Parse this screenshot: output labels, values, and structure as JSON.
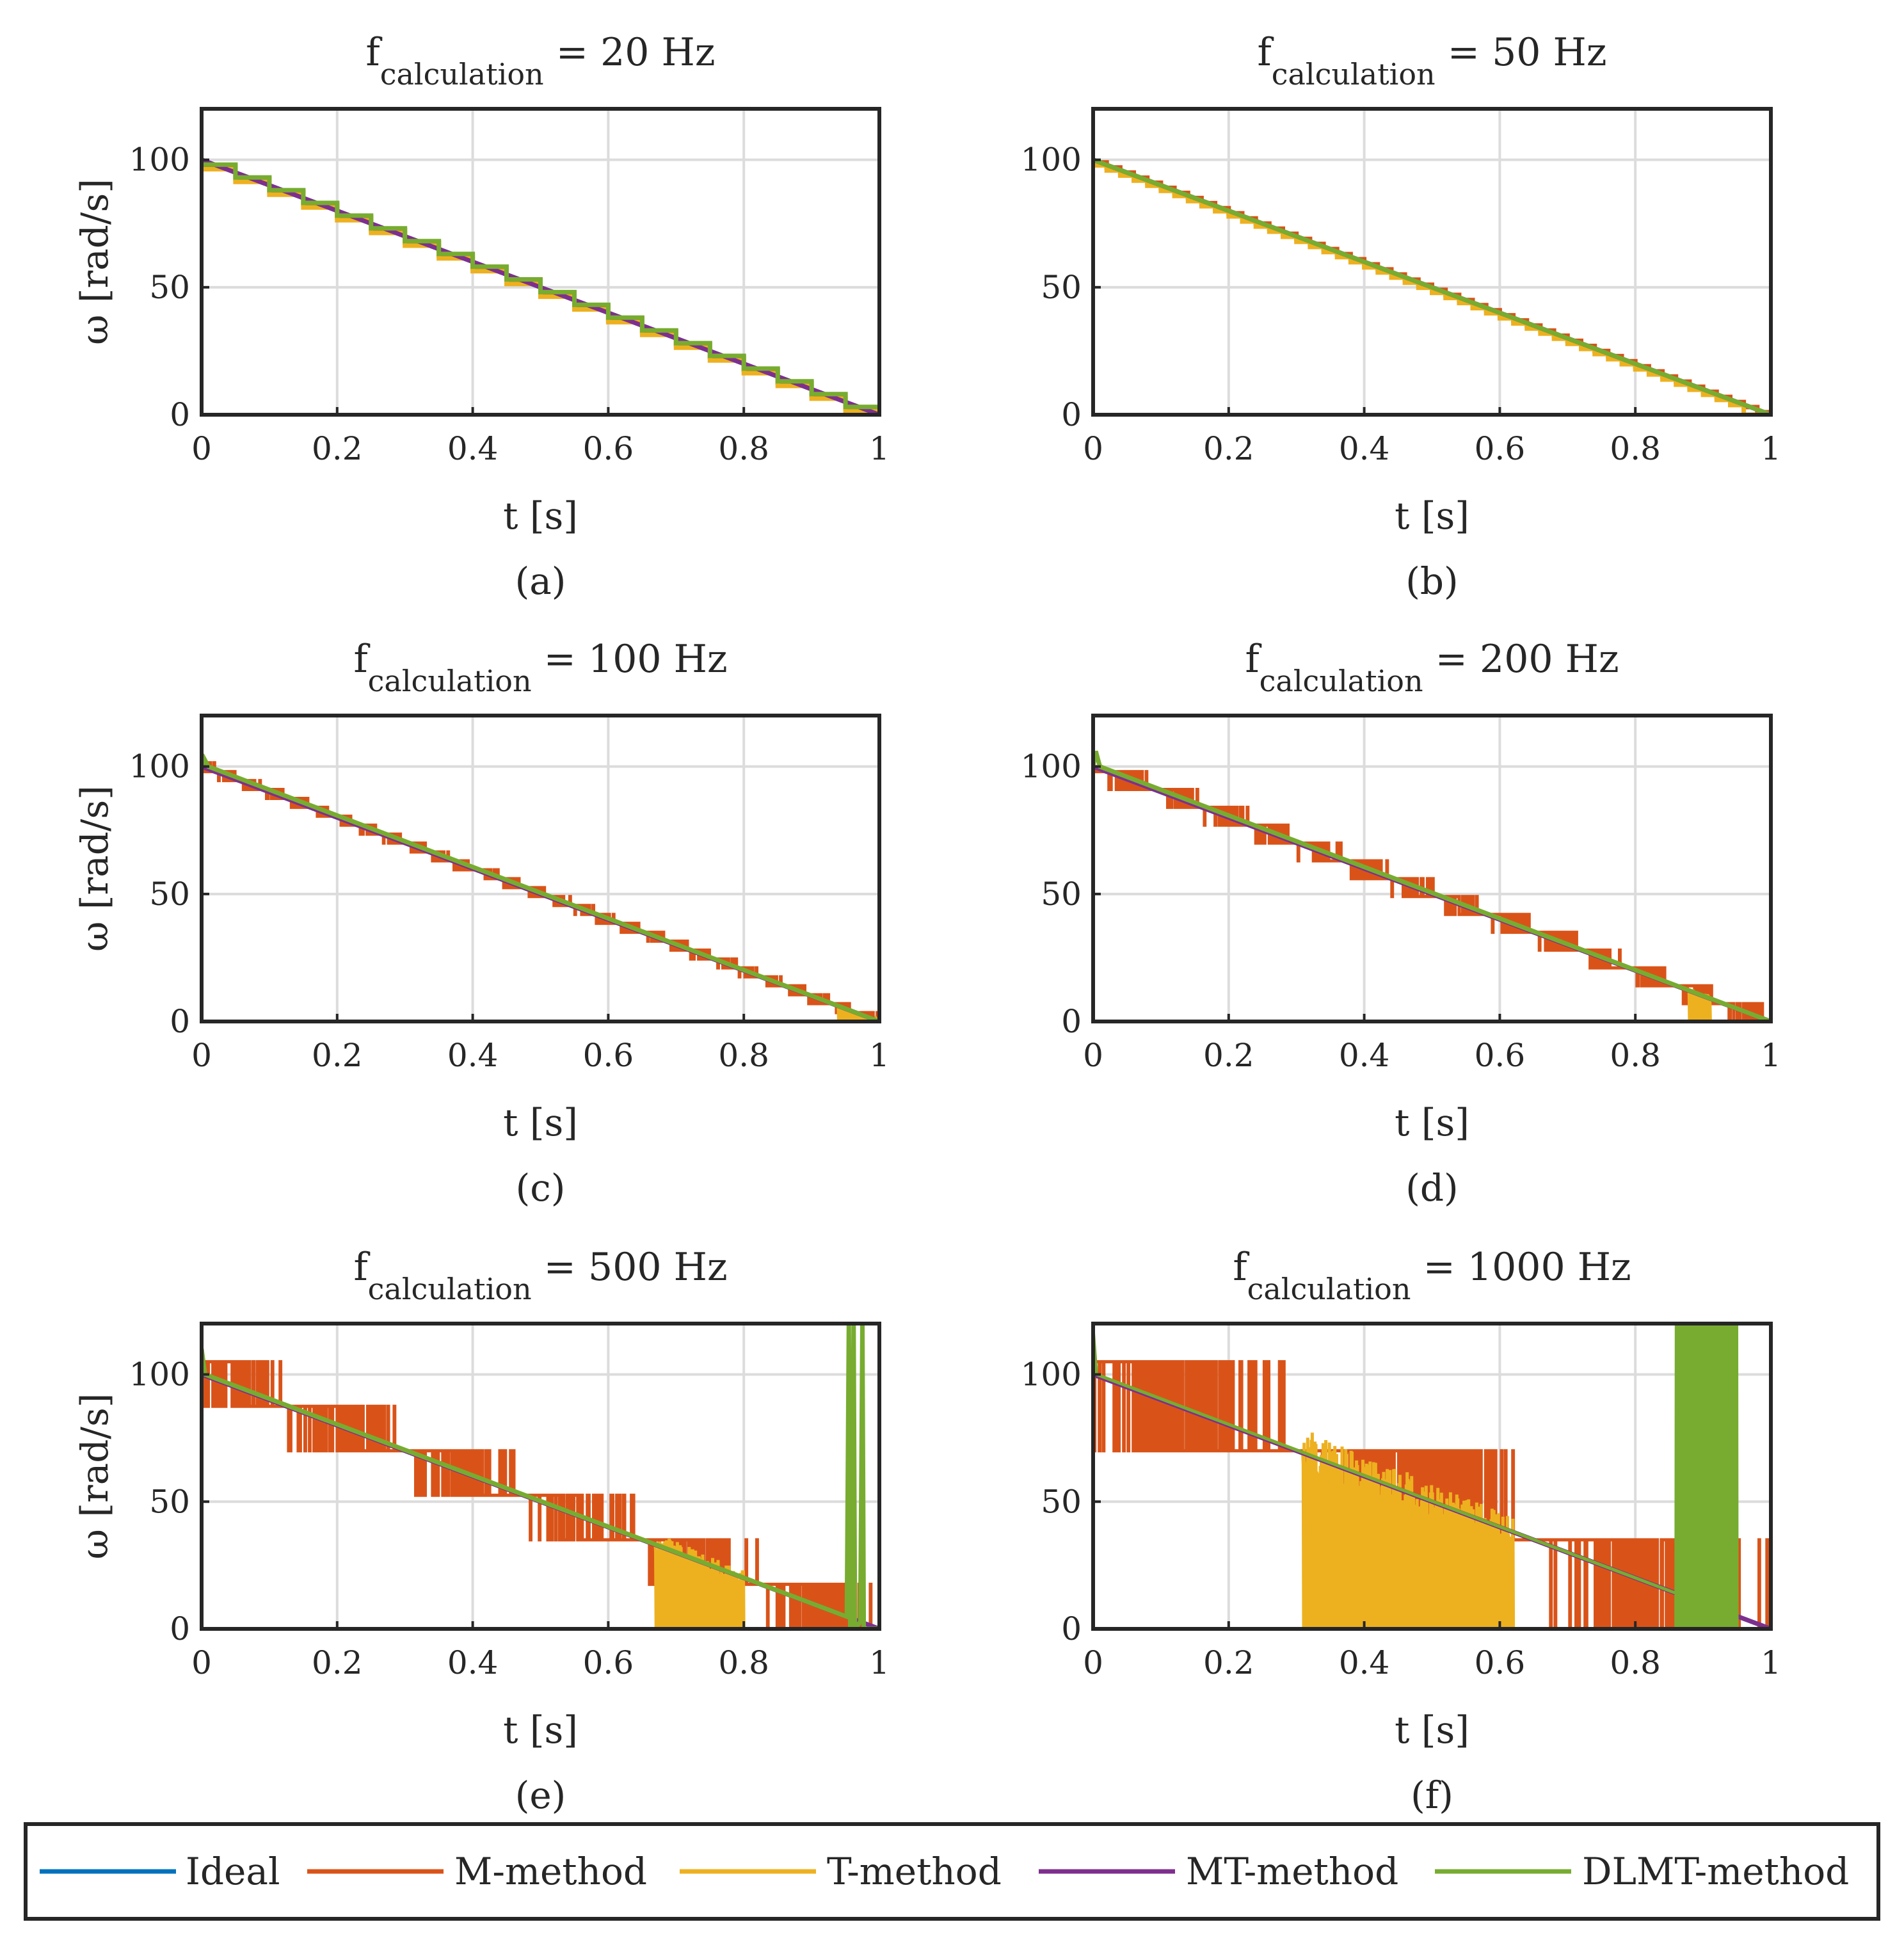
{
  "legend": {
    "entries": [
      {
        "key": "ideal",
        "label": "Ideal",
        "color": "#0072BD"
      },
      {
        "key": "m",
        "label": "M-method",
        "color": "#D95319"
      },
      {
        "key": "t",
        "label": "T-method",
        "color": "#EDB120"
      },
      {
        "key": "mt",
        "label": "MT-method",
        "color": "#7E2F8E"
      },
      {
        "key": "dlmt",
        "label": "DLMT-method",
        "color": "#77AC30"
      }
    ]
  },
  "chart_data": [
    {
      "type": "line",
      "caption": "(a)",
      "title": {
        "prefix": "f",
        "subscript": "calculation",
        "suffix": " = 20 Hz"
      },
      "xlabel": "t [s]",
      "ylabel": "ω [rad/s]",
      "xlim": [
        0,
        1
      ],
      "ylim": [
        0,
        120
      ],
      "xticks": [
        "0",
        "0.2",
        "0.4",
        "0.6",
        "0.8",
        "1"
      ],
      "yticks": [
        "0",
        "50",
        "100"
      ],
      "grid": true,
      "series": [
        {
          "key": "ideal",
          "name": "Ideal",
          "x": [
            0,
            1
          ],
          "y": [
            100,
            0
          ]
        },
        {
          "key": "m",
          "name": "M-method",
          "behavior": "staircase",
          "steps": 20,
          "step_values_from": 95,
          "step_values_to": 3
        },
        {
          "key": "t",
          "name": "T-method",
          "behavior": "staircase",
          "steps": 20,
          "step_values_from": 95,
          "step_values_to": 3
        },
        {
          "key": "mt",
          "name": "MT-method",
          "x": [
            0,
            1
          ],
          "y": [
            100,
            0
          ]
        },
        {
          "key": "dlmt",
          "name": "DLMT-method",
          "behavior": "staircase",
          "steps": 20,
          "step_values_from": 97,
          "step_values_to": 3
        }
      ]
    },
    {
      "type": "line",
      "caption": "(b)",
      "title": {
        "prefix": "f",
        "subscript": "calculation",
        "suffix": " = 50 Hz"
      },
      "xlabel": "t [s]",
      "ylabel": "",
      "xlim": [
        0,
        1
      ],
      "ylim": [
        0,
        120
      ],
      "xticks": [
        "0",
        "0.2",
        "0.4",
        "0.6",
        "0.8",
        "1"
      ],
      "yticks": [
        "0",
        "50",
        "100"
      ],
      "grid": true,
      "series": [
        {
          "key": "ideal",
          "name": "Ideal",
          "x": [
            0,
            1
          ],
          "y": [
            100,
            0
          ]
        },
        {
          "key": "m",
          "name": "M-method",
          "behavior": "staircase",
          "steps": 50,
          "step_values_from": 99,
          "step_values_to": 1
        },
        {
          "key": "t",
          "name": "T-method",
          "behavior": "staircase-drop",
          "steps": 50,
          "drop_at": 0.96
        },
        {
          "key": "mt",
          "name": "MT-method",
          "x": [
            0,
            1
          ],
          "y": [
            100,
            0
          ]
        },
        {
          "key": "dlmt",
          "name": "DLMT-method",
          "x": [
            0,
            1
          ],
          "y": [
            100,
            0
          ]
        }
      ]
    },
    {
      "type": "line",
      "caption": "(c)",
      "title": {
        "prefix": "f",
        "subscript": "calculation",
        "suffix": " = 100 Hz"
      },
      "xlabel": "t [s]",
      "ylabel": "ω [rad/s]",
      "xlim": [
        0,
        1
      ],
      "ylim": [
        0,
        120
      ],
      "xticks": [
        "0",
        "0.2",
        "0.4",
        "0.6",
        "0.8",
        "1"
      ],
      "yticks": [
        "0",
        "50",
        "100"
      ],
      "grid": true,
      "series": [
        {
          "key": "ideal",
          "name": "Ideal",
          "x": [
            0,
            1
          ],
          "y": [
            100,
            0
          ]
        },
        {
          "key": "m",
          "name": "M-method",
          "behavior": "quantized-jitter",
          "levels_step": 3.5,
          "max_value": 103
        },
        {
          "key": "t",
          "name": "T-method",
          "behavior": "dropout-after",
          "start": 0.94
        },
        {
          "key": "mt",
          "name": "MT-method",
          "x": [
            0,
            1
          ],
          "y": [
            100,
            0
          ]
        },
        {
          "key": "dlmt",
          "name": "DLMT-method",
          "x": [
            0,
            0.004,
            0.01,
            1
          ],
          "y": [
            100,
            103,
            100,
            0
          ]
        }
      ]
    },
    {
      "type": "line",
      "caption": "(d)",
      "title": {
        "prefix": "f",
        "subscript": "calculation",
        "suffix": " = 200 Hz"
      },
      "xlabel": "t [s]",
      "ylabel": "",
      "xlim": [
        0,
        1
      ],
      "ylim": [
        0,
        120
      ],
      "xticks": [
        "0",
        "0.2",
        "0.4",
        "0.6",
        "0.8",
        "1"
      ],
      "yticks": [
        "0",
        "50",
        "100"
      ],
      "grid": true,
      "series": [
        {
          "key": "ideal",
          "name": "Ideal",
          "x": [
            0,
            1
          ],
          "y": [
            100,
            0
          ]
        },
        {
          "key": "m",
          "name": "M-method",
          "behavior": "quantized-jitter",
          "levels_step": 7,
          "max_value": 100
        },
        {
          "key": "t",
          "name": "T-method",
          "behavior": "dropout-after",
          "start": 0.88,
          "end": 0.91
        },
        {
          "key": "mt",
          "name": "MT-method",
          "x": [
            0,
            1
          ],
          "y": [
            100,
            0
          ]
        },
        {
          "key": "dlmt",
          "name": "DLMT-method",
          "x": [
            0,
            0.004,
            0.01,
            1
          ],
          "y": [
            100,
            106,
            100,
            0
          ]
        }
      ]
    },
    {
      "type": "line",
      "caption": "(e)",
      "title": {
        "prefix": "f",
        "subscript": "calculation",
        "suffix": " = 500 Hz"
      },
      "xlabel": "t [s]",
      "ylabel": "ω [rad/s]",
      "xlim": [
        0,
        1
      ],
      "ylim": [
        0,
        120
      ],
      "xticks": [
        "0",
        "0.2",
        "0.4",
        "0.6",
        "0.8",
        "1"
      ],
      "yticks": [
        "0",
        "50",
        "100"
      ],
      "grid": true,
      "series": [
        {
          "key": "ideal",
          "name": "Ideal",
          "x": [
            0,
            1
          ],
          "y": [
            100,
            0
          ]
        },
        {
          "key": "m",
          "name": "M-method",
          "behavior": "quantized-jitter",
          "levels_step": 17.5,
          "max_value": 105
        },
        {
          "key": "t",
          "name": "T-method",
          "behavior": "dropout-band",
          "start": 0.67,
          "end": 0.8,
          "zero_after": 0.8
        },
        {
          "key": "mt",
          "name": "MT-method",
          "x": [
            0,
            1
          ],
          "y": [
            100,
            0
          ]
        },
        {
          "key": "dlmt",
          "name": "DLMT-method",
          "behavior": "spikes-near-end",
          "spikes_at": [
            0.955,
            0.962,
            0.975
          ],
          "spike_max": 120
        }
      ]
    },
    {
      "type": "line",
      "caption": "(f)",
      "title": {
        "prefix": "f",
        "subscript": "calculation",
        "suffix": " = 1000 Hz"
      },
      "xlabel": "t [s]",
      "ylabel": "",
      "xlim": [
        0,
        1
      ],
      "ylim": [
        0,
        120
      ],
      "xticks": [
        "0",
        "0.2",
        "0.4",
        "0.6",
        "0.8",
        "1"
      ],
      "yticks": [
        "0",
        "50",
        "100"
      ],
      "grid": true,
      "series": [
        {
          "key": "ideal",
          "name": "Ideal",
          "x": [
            0,
            1
          ],
          "y": [
            100,
            0
          ]
        },
        {
          "key": "m",
          "name": "M-method",
          "behavior": "quantized-jitter",
          "levels_step": 35,
          "max_value": 105
        },
        {
          "key": "t",
          "name": "T-method",
          "behavior": "dropout-band",
          "start": 0.31,
          "end": 0.62,
          "zero_after": 0.62
        },
        {
          "key": "mt",
          "name": "MT-method",
          "x": [
            0,
            1
          ],
          "y": [
            100,
            0
          ]
        },
        {
          "key": "dlmt",
          "name": "DLMT-method",
          "behavior": "oscillation-band",
          "start": 0.86,
          "end": 0.95,
          "band_max": 120
        }
      ]
    }
  ]
}
